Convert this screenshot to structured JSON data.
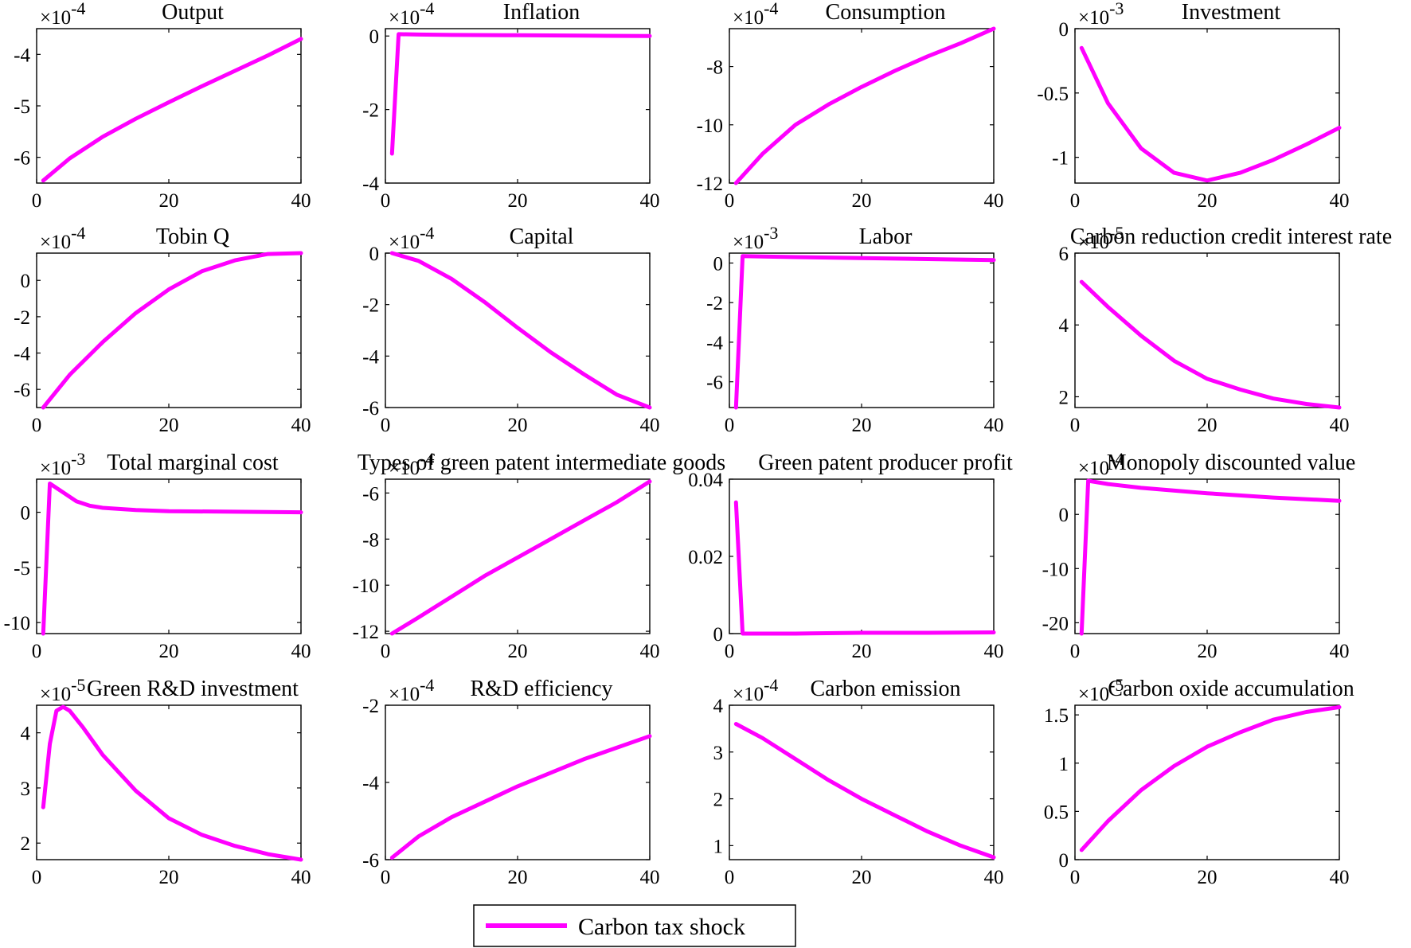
{
  "chart_data": [
    {
      "type": "line",
      "title": "Output",
      "multiplier": "×10^-4",
      "mult_base": "×10",
      "mult_exp": "-4",
      "xlim": [
        0,
        40
      ],
      "ylim": [
        -6.5,
        -3.5
      ],
      "xticks": [
        0,
        20,
        40
      ],
      "yticks": [
        -6,
        -5,
        -4
      ],
      "series": [
        {
          "name": "Carbon tax shock",
          "color": "#ff00ff",
          "x": [
            1,
            5,
            10,
            15,
            20,
            25,
            30,
            35,
            40
          ],
          "y": [
            -6.45,
            -6.02,
            -5.6,
            -5.25,
            -4.93,
            -4.62,
            -4.32,
            -4.02,
            -3.7
          ]
        }
      ]
    },
    {
      "type": "line",
      "title": "Inflation",
      "multiplier": "×10^-4",
      "mult_base": "×10",
      "mult_exp": "-4",
      "xlim": [
        0,
        40
      ],
      "ylim": [
        -4,
        0.2
      ],
      "xticks": [
        0,
        20,
        40
      ],
      "yticks": [
        -4,
        -2,
        0
      ],
      "series": [
        {
          "name": "Carbon tax shock",
          "color": "#ff00ff",
          "x": [
            1,
            2,
            5,
            10,
            20,
            30,
            40
          ],
          "y": [
            -3.2,
            0.05,
            0.04,
            0.03,
            0.02,
            0.01,
            0.0
          ]
        }
      ]
    },
    {
      "type": "line",
      "title": "Consumption",
      "multiplier": "×10^-4",
      "mult_base": "×10",
      "mult_exp": "-4",
      "xlim": [
        0,
        40
      ],
      "ylim": [
        -12,
        -6.7
      ],
      "xticks": [
        0,
        20,
        40
      ],
      "yticks": [
        -12,
        -10,
        -8
      ],
      "series": [
        {
          "name": "Carbon tax shock",
          "color": "#ff00ff",
          "x": [
            1,
            5,
            10,
            15,
            20,
            25,
            30,
            35,
            40
          ],
          "y": [
            -12,
            -11.0,
            -10.0,
            -9.3,
            -8.7,
            -8.15,
            -7.65,
            -7.2,
            -6.7
          ]
        }
      ]
    },
    {
      "type": "line",
      "title": "Investment",
      "multiplier": "×10^-3",
      "mult_base": "×10",
      "mult_exp": "-3",
      "xlim": [
        0,
        40
      ],
      "ylim": [
        -1.2,
        0
      ],
      "xticks": [
        0,
        20,
        40
      ],
      "yticks": [
        -1,
        -0.5,
        0
      ],
      "series": [
        {
          "name": "Carbon tax shock",
          "color": "#ff00ff",
          "x": [
            1,
            5,
            10,
            15,
            20,
            25,
            30,
            35,
            40
          ],
          "y": [
            -0.15,
            -0.58,
            -0.93,
            -1.12,
            -1.18,
            -1.12,
            -1.02,
            -0.9,
            -0.77
          ]
        }
      ]
    },
    {
      "type": "line",
      "title": "Tobin Q",
      "multiplier": "×10^-4",
      "mult_base": "×10",
      "mult_exp": "-4",
      "xlim": [
        0,
        40
      ],
      "ylim": [
        -7,
        1.5
      ],
      "xticks": [
        0,
        20,
        40
      ],
      "yticks": [
        -6,
        -4,
        -2,
        0
      ],
      "series": [
        {
          "name": "Carbon tax shock",
          "color": "#ff00ff",
          "x": [
            1,
            5,
            10,
            15,
            20,
            25,
            30,
            35,
            40
          ],
          "y": [
            -7,
            -5.2,
            -3.4,
            -1.8,
            -0.5,
            0.5,
            1.1,
            1.45,
            1.5
          ]
        }
      ]
    },
    {
      "type": "line",
      "title": "Capital",
      "multiplier": "×10^-4",
      "mult_base": "×10",
      "mult_exp": "-4",
      "xlim": [
        0,
        40
      ],
      "ylim": [
        -6,
        0
      ],
      "xticks": [
        0,
        20,
        40
      ],
      "yticks": [
        -6,
        -4,
        -2,
        0
      ],
      "series": [
        {
          "name": "Carbon tax shock",
          "color": "#ff00ff",
          "x": [
            1,
            5,
            10,
            15,
            20,
            25,
            30,
            35,
            40
          ],
          "y": [
            0,
            -0.3,
            -1.0,
            -1.9,
            -2.9,
            -3.85,
            -4.7,
            -5.5,
            -6
          ]
        }
      ]
    },
    {
      "type": "line",
      "title": "Labor",
      "multiplier": "×10^-3",
      "mult_base": "×10",
      "mult_exp": "-3",
      "xlim": [
        0,
        40
      ],
      "ylim": [
        -7.3,
        0.5
      ],
      "xticks": [
        0,
        20,
        40
      ],
      "yticks": [
        -6,
        -4,
        -2,
        0
      ],
      "series": [
        {
          "name": "Carbon tax shock",
          "color": "#ff00ff",
          "x": [
            1,
            2,
            5,
            10,
            20,
            30,
            40
          ],
          "y": [
            -7.3,
            0.35,
            0.33,
            0.3,
            0.25,
            0.2,
            0.15
          ]
        }
      ]
    },
    {
      "type": "line",
      "title": "Carbon reduction credit interest rate",
      "multiplier": "×10^-5",
      "mult_base": "×10",
      "mult_exp": "-5",
      "xlim": [
        0,
        40
      ],
      "ylim": [
        1.7,
        6
      ],
      "xticks": [
        0,
        20,
        40
      ],
      "yticks": [
        2,
        4,
        6
      ],
      "series": [
        {
          "name": "Carbon tax shock",
          "color": "#ff00ff",
          "x": [
            1,
            5,
            10,
            15,
            20,
            25,
            30,
            35,
            40
          ],
          "y": [
            5.2,
            4.5,
            3.7,
            3.0,
            2.5,
            2.2,
            1.95,
            1.8,
            1.7
          ]
        }
      ]
    },
    {
      "type": "line",
      "title": "Total marginal cost",
      "multiplier": "×10^-3",
      "mult_base": "×10",
      "mult_exp": "-3",
      "xlim": [
        0,
        40
      ],
      "ylim": [
        -11,
        3
      ],
      "xticks": [
        0,
        20,
        40
      ],
      "yticks": [
        -10,
        -5,
        0
      ],
      "series": [
        {
          "name": "Carbon tax shock",
          "color": "#ff00ff",
          "x": [
            1,
            2,
            4,
            6,
            8,
            10,
            15,
            20,
            30,
            40
          ],
          "y": [
            -11,
            2.6,
            1.8,
            1.0,
            0.6,
            0.4,
            0.2,
            0.1,
            0.05,
            0.0
          ]
        }
      ]
    },
    {
      "type": "line",
      "title": "Types of green patent intermediate goods",
      "multiplier": "×10^-4",
      "mult_base": "×10",
      "mult_exp": "-4",
      "xlim": [
        0,
        40
      ],
      "ylim": [
        -12.1,
        -5.4
      ],
      "xticks": [
        0,
        20,
        40
      ],
      "yticks": [
        -12,
        -10,
        -8,
        -6
      ],
      "series": [
        {
          "name": "Carbon tax shock",
          "color": "#ff00ff",
          "x": [
            1,
            5,
            10,
            15,
            20,
            25,
            30,
            35,
            40
          ],
          "y": [
            -12.1,
            -11.4,
            -10.5,
            -9.6,
            -8.8,
            -8.0,
            -7.2,
            -6.4,
            -5.5
          ]
        }
      ]
    },
    {
      "type": "line",
      "title": "Green patent producer profit",
      "xlim": [
        0,
        40
      ],
      "ylim": [
        0,
        0.04
      ],
      "xticks": [
        0,
        20,
        40
      ],
      "yticks": [
        0,
        0.02,
        0.04
      ],
      "series": [
        {
          "name": "Carbon tax shock",
          "color": "#ff00ff",
          "x": [
            1,
            2,
            5,
            10,
            20,
            30,
            40
          ],
          "y": [
            0.034,
            0.0,
            0.0,
            0.0,
            0.0002,
            0.0002,
            0.0003
          ]
        }
      ]
    },
    {
      "type": "line",
      "title": "Monopoly discounted value",
      "multiplier": "×10^-4",
      "mult_base": "×10",
      "mult_exp": "-4",
      "xlim": [
        0,
        40
      ],
      "ylim": [
        -22,
        6.5
      ],
      "xticks": [
        0,
        20,
        40
      ],
      "yticks": [
        -20,
        -10,
        0
      ],
      "series": [
        {
          "name": "Carbon tax shock",
          "color": "#ff00ff",
          "x": [
            1,
            2,
            5,
            10,
            20,
            30,
            40
          ],
          "y": [
            -22,
            6.2,
            5.6,
            4.9,
            3.9,
            3.1,
            2.5
          ]
        }
      ]
    },
    {
      "type": "line",
      "title": "Green R&D investment",
      "multiplier": "×10^-5",
      "mult_base": "×10",
      "mult_exp": "-5",
      "xlim": [
        0,
        40
      ],
      "ylim": [
        1.7,
        4.5
      ],
      "xticks": [
        0,
        20,
        40
      ],
      "yticks": [
        2,
        3,
        4
      ],
      "series": [
        {
          "name": "Carbon tax shock",
          "color": "#ff00ff",
          "x": [
            1,
            2,
            3,
            4,
            5,
            7,
            10,
            15,
            20,
            25,
            30,
            35,
            40
          ],
          "y": [
            2.65,
            3.8,
            4.4,
            4.47,
            4.4,
            4.1,
            3.6,
            2.95,
            2.45,
            2.15,
            1.95,
            1.8,
            1.7
          ]
        }
      ]
    },
    {
      "type": "line",
      "title": "R&D efficiency",
      "multiplier": "×10^-4",
      "mult_base": "×10",
      "mult_exp": "-4",
      "xlim": [
        0,
        40
      ],
      "ylim": [
        -6,
        -2
      ],
      "xticks": [
        0,
        20,
        40
      ],
      "yticks": [
        -6,
        -4,
        -2
      ],
      "series": [
        {
          "name": "Carbon tax shock",
          "color": "#ff00ff",
          "x": [
            1,
            5,
            10,
            15,
            20,
            25,
            30,
            35,
            40
          ],
          "y": [
            -5.95,
            -5.4,
            -4.9,
            -4.5,
            -4.1,
            -3.75,
            -3.4,
            -3.1,
            -2.8
          ]
        }
      ]
    },
    {
      "type": "line",
      "title": "Carbon emission",
      "multiplier": "×10^-4",
      "mult_base": "×10",
      "mult_exp": "-4",
      "xlim": [
        0,
        40
      ],
      "ylim": [
        0.7,
        4
      ],
      "xticks": [
        0,
        20,
        40
      ],
      "yticks": [
        1,
        2,
        3,
        4
      ],
      "series": [
        {
          "name": "Carbon tax shock",
          "color": "#ff00ff",
          "x": [
            1,
            5,
            10,
            15,
            20,
            25,
            30,
            35,
            40
          ],
          "y": [
            3.6,
            3.3,
            2.85,
            2.4,
            2.0,
            1.65,
            1.3,
            1.0,
            0.75
          ]
        }
      ]
    },
    {
      "type": "line",
      "title": "Carbon oxide accumulation",
      "multiplier": "×10^-5",
      "mult_base": "×10",
      "mult_exp": "-5",
      "xlim": [
        0,
        40
      ],
      "ylim": [
        0,
        1.6
      ],
      "xticks": [
        0,
        20,
        40
      ],
      "yticks": [
        0,
        0.5,
        1,
        1.5
      ],
      "series": [
        {
          "name": "Carbon tax shock",
          "color": "#ff00ff",
          "x": [
            1,
            5,
            10,
            15,
            20,
            25,
            30,
            35,
            40
          ],
          "y": [
            0.1,
            0.4,
            0.72,
            0.97,
            1.17,
            1.32,
            1.45,
            1.53,
            1.58
          ]
        }
      ]
    }
  ],
  "legend": {
    "label": "Carbon tax shock",
    "color": "#ff00ff",
    "position": "bottom-center"
  }
}
